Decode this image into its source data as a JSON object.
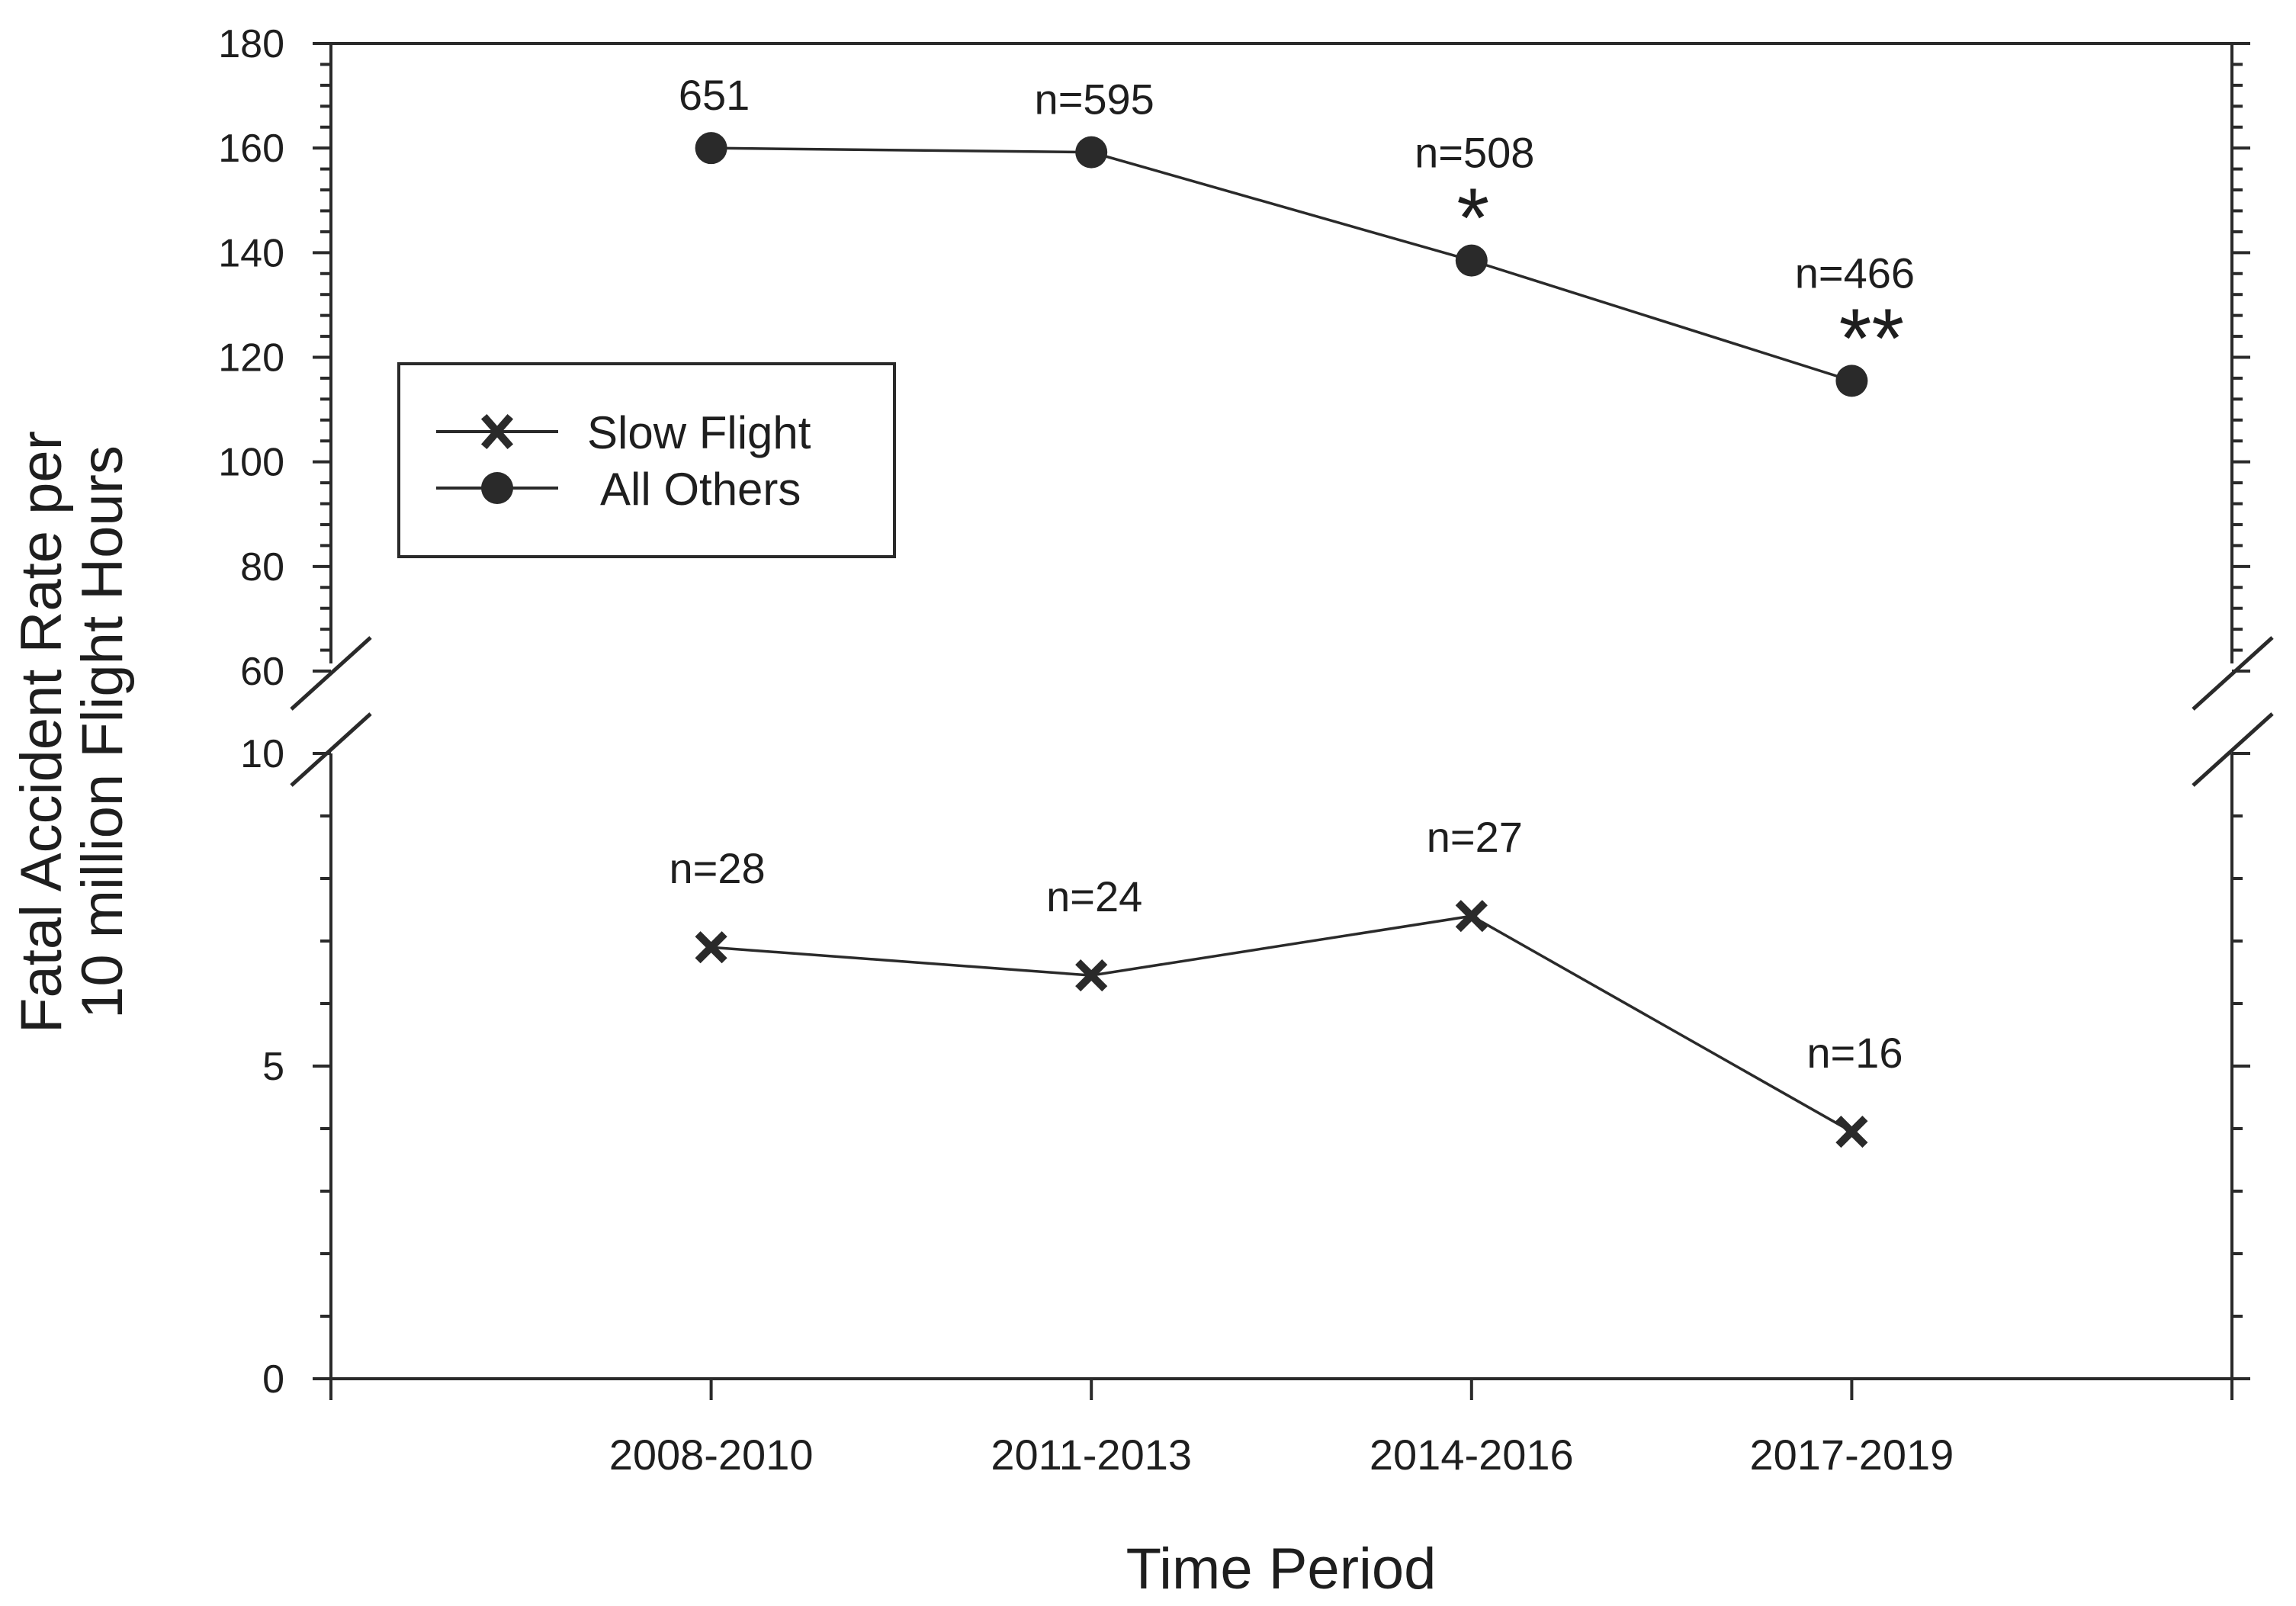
{
  "chart_data": {
    "type": "line",
    "xlabel": "Time Period",
    "ylabel_lines": [
      "Fatal Accident Rate per",
      "10 million Flight Hours"
    ],
    "categories": [
      "2008-2010",
      "2011-2013",
      "2014-2016",
      "2017-2019"
    ],
    "y_axis": {
      "broken": true,
      "lower_range": [
        0,
        10
      ],
      "upper_range": [
        60,
        180
      ],
      "lower_ticks": [
        "0",
        "5",
        "10"
      ],
      "upper_ticks": [
        "60",
        "80",
        "100",
        "120",
        "140",
        "160",
        "180"
      ]
    },
    "series": [
      {
        "name": "Slow Flight",
        "marker": "x",
        "values": [
          6.9,
          6.45,
          7.4,
          3.95
        ],
        "annotations": [
          "n=28",
          "n=24",
          "n=27",
          "n=16"
        ]
      },
      {
        "name": "All Others",
        "marker": "circle",
        "values": [
          160,
          159.2,
          138.5,
          115.5
        ],
        "annotations": [
          "651",
          "n=595",
          "n=508",
          "n=466"
        ],
        "significance": [
          "",
          "",
          "*",
          "**"
        ]
      }
    ],
    "legend_position": "upper-left",
    "grid": false
  }
}
